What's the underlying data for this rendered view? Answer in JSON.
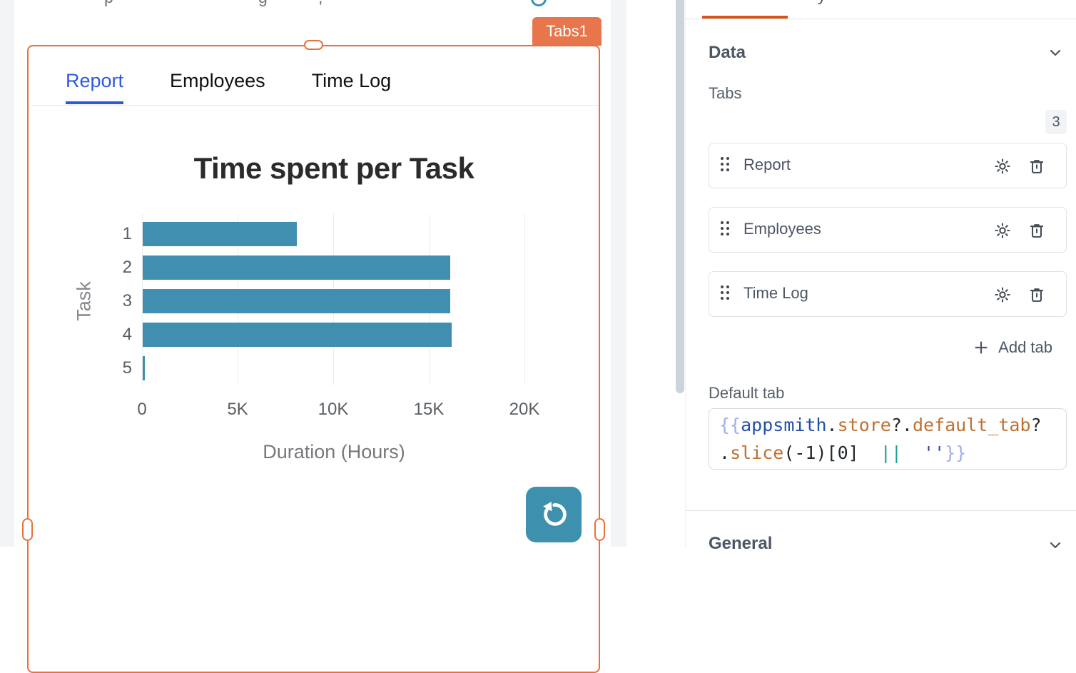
{
  "colors": {
    "selection_orange": "#E8713C",
    "badge_orange": "#E8764D",
    "accent_blue": "#2E59DF",
    "button_teal": "#3D91AE",
    "bar_teal": "#418FB0",
    "pane_tab_orange": "#D6551D"
  },
  "canvas": {
    "widget_badge": "Tabs1",
    "top_clipped_glyphs": [
      "p",
      "g",
      ","
    ],
    "tabs": [
      {
        "label": "Report",
        "active": true
      },
      {
        "label": "Employees",
        "active": false
      },
      {
        "label": "Time Log",
        "active": false
      }
    ],
    "refresh_icon": "refresh-counterclockwise"
  },
  "chart_data": {
    "type": "bar",
    "orientation": "horizontal",
    "title": "Time spent per Task",
    "categories": [
      "1",
      "2",
      "3",
      "4",
      "5"
    ],
    "values": [
      8060,
      16100,
      16100,
      16150,
      60
    ],
    "xlabel": "Duration (Hours)",
    "ylabel": "Task",
    "xlim": [
      0,
      20000
    ],
    "xticks": [
      "0",
      "5K",
      "10K",
      "15K",
      "20K"
    ],
    "grid": true,
    "legend": false,
    "bar_color": "#418FB0"
  },
  "panel": {
    "style_tab_clipped_glyph": "y",
    "data_section": {
      "title": "Data",
      "tabs_label": "Tabs",
      "count": "3",
      "items": [
        {
          "label": "Report"
        },
        {
          "label": "Employees"
        },
        {
          "label": "Time Log"
        }
      ],
      "add_tab_label": "Add tab",
      "default_tab_label": "Default tab",
      "code_lines": [
        [
          [
            "{{",
            "brace"
          ],
          [
            "appsmith",
            "var"
          ],
          [
            ".",
            "punc"
          ],
          [
            "store",
            "prop"
          ],
          [
            "?.",
            "punc"
          ],
          [
            "default_tab",
            "prop"
          ],
          [
            "?",
            "punc"
          ]
        ],
        [
          [
            ".",
            "punc"
          ],
          [
            "slice",
            "prop"
          ],
          [
            "(-1)[0]",
            "punc"
          ],
          [
            "  ",
            "punc"
          ],
          [
            "||",
            "op"
          ],
          [
            "  ",
            "punc"
          ],
          [
            "''",
            "str"
          ],
          [
            "}}",
            "brace"
          ]
        ]
      ]
    },
    "general_section": {
      "title": "General"
    }
  }
}
